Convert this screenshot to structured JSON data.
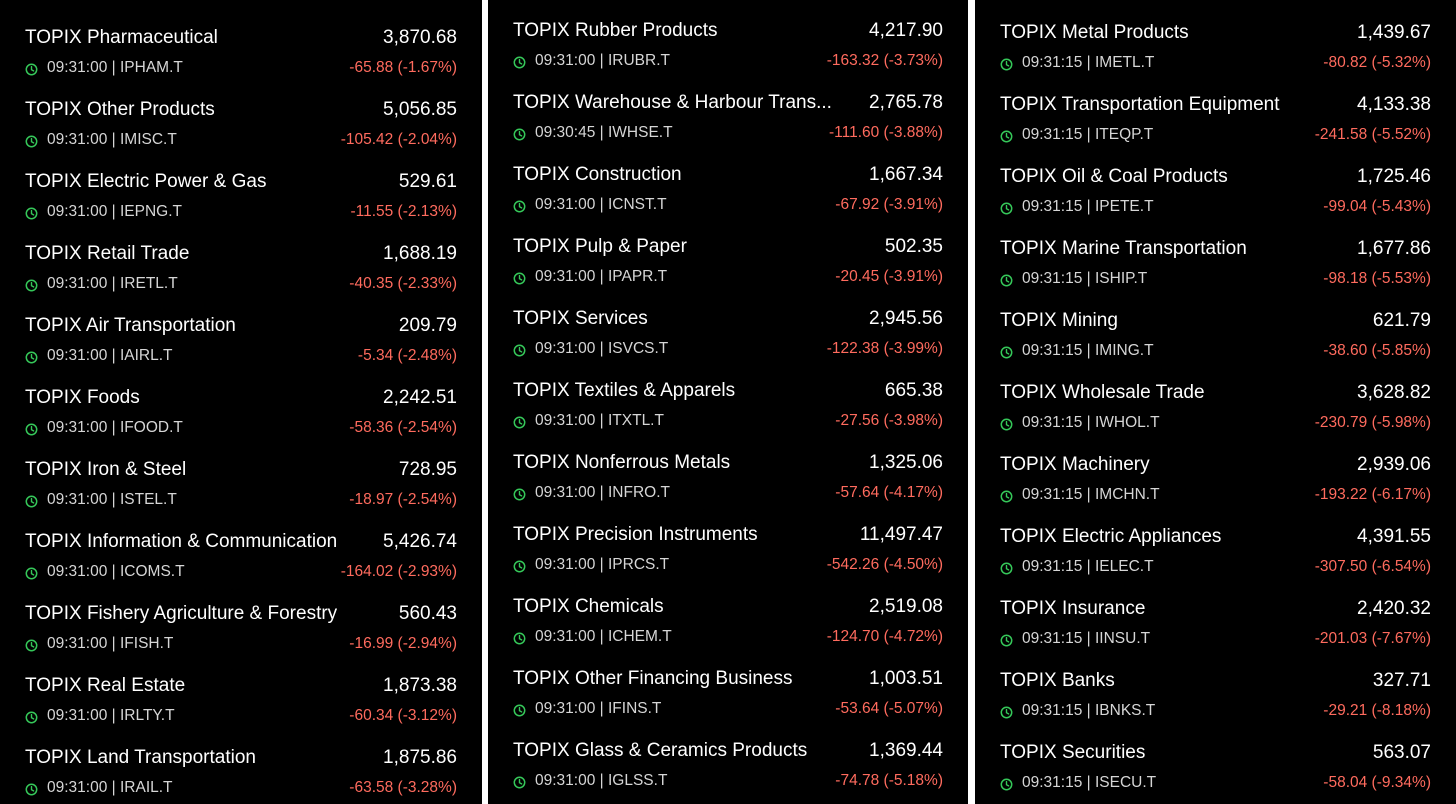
{
  "theme": {
    "background": "#000000",
    "text": "#ffffff",
    "meta_text": "#d6d6d6",
    "negative": "#ff6b5e",
    "clock_green": "#35c759",
    "separator": "#ffffff"
  },
  "columns": [
    {
      "items": [
        {
          "name": "TOPIX Pharmaceutical",
          "price": "3,870.68",
          "time": "09:31:00",
          "code": "IPHAM.T",
          "change": "-65.88 (-1.67%)",
          "icon": "clock-icon"
        },
        {
          "name": "TOPIX Other Products",
          "price": "5,056.85",
          "time": "09:31:00",
          "code": "IMISC.T",
          "change": "-105.42 (-2.04%)",
          "icon": "clock-icon"
        },
        {
          "name": "TOPIX Electric Power & Gas",
          "price": "529.61",
          "time": "09:31:00",
          "code": "IEPNG.T",
          "change": "-11.55 (-2.13%)",
          "icon": "clock-icon"
        },
        {
          "name": "TOPIX Retail Trade",
          "price": "1,688.19",
          "time": "09:31:00",
          "code": "IRETL.T",
          "change": "-40.35 (-2.33%)",
          "icon": "clock-icon"
        },
        {
          "name": "TOPIX Air Transportation",
          "price": "209.79",
          "time": "09:31:00",
          "code": "IAIRL.T",
          "change": "-5.34 (-2.48%)",
          "icon": "clock-icon"
        },
        {
          "name": "TOPIX Foods",
          "price": "2,242.51",
          "time": "09:31:00",
          "code": "IFOOD.T",
          "change": "-58.36 (-2.54%)",
          "icon": "clock-icon"
        },
        {
          "name": "TOPIX Iron & Steel",
          "price": "728.95",
          "time": "09:31:00",
          "code": "ISTEL.T",
          "change": "-18.97 (-2.54%)",
          "icon": "clock-icon"
        },
        {
          "name": "TOPIX Information & Communication",
          "price": "5,426.74",
          "time": "09:31:00",
          "code": "ICOMS.T",
          "change": "-164.02 (-2.93%)",
          "icon": "clock-icon"
        },
        {
          "name": "TOPIX Fishery Agriculture & Forestry",
          "price": "560.43",
          "time": "09:31:00",
          "code": "IFISH.T",
          "change": "-16.99 (-2.94%)",
          "icon": "clock-icon"
        },
        {
          "name": "TOPIX Real Estate",
          "price": "1,873.38",
          "time": "09:31:00",
          "code": "IRLTY.T",
          "change": "-60.34 (-3.12%)",
          "icon": "clock-icon"
        },
        {
          "name": "TOPIX Land Transportation",
          "price": "1,875.86",
          "time": "09:31:00",
          "code": "IRAIL.T",
          "change": "-63.58 (-3.28%)",
          "icon": "clock-icon"
        }
      ]
    },
    {
      "items": [
        {
          "name": "TOPIX Rubber Products",
          "price": "4,217.90",
          "time": "09:31:00",
          "code": "IRUBR.T",
          "change": "-163.32 (-3.73%)",
          "icon": "clock-icon"
        },
        {
          "name": "TOPIX Warehouse & Harbour Trans...",
          "price": "2,765.78",
          "time": "09:30:45",
          "code": "IWHSE.T",
          "change": "-111.60 (-3.88%)",
          "icon": "clock-icon"
        },
        {
          "name": "TOPIX Construction",
          "price": "1,667.34",
          "time": "09:31:00",
          "code": "ICNST.T",
          "change": "-67.92 (-3.91%)",
          "icon": "clock-icon"
        },
        {
          "name": "TOPIX Pulp & Paper",
          "price": "502.35",
          "time": "09:31:00",
          "code": "IPAPR.T",
          "change": "-20.45 (-3.91%)",
          "icon": "clock-icon"
        },
        {
          "name": "TOPIX Services",
          "price": "2,945.56",
          "time": "09:31:00",
          "code": "ISVCS.T",
          "change": "-122.38 (-3.99%)",
          "icon": "clock-icon"
        },
        {
          "name": "TOPIX Textiles & Apparels",
          "price": "665.38",
          "time": "09:31:00",
          "code": "ITXTL.T",
          "change": "-27.56 (-3.98%)",
          "icon": "clock-icon"
        },
        {
          "name": "TOPIX Nonferrous Metals",
          "price": "1,325.06",
          "time": "09:31:00",
          "code": "INFRO.T",
          "change": "-57.64 (-4.17%)",
          "icon": "clock-icon"
        },
        {
          "name": "TOPIX Precision Instruments",
          "price": "11,497.47",
          "time": "09:31:00",
          "code": "IPRCS.T",
          "change": "-542.26 (-4.50%)",
          "icon": "clock-icon"
        },
        {
          "name": "TOPIX Chemicals",
          "price": "2,519.08",
          "time": "09:31:00",
          "code": "ICHEM.T",
          "change": "-124.70 (-4.72%)",
          "icon": "clock-icon"
        },
        {
          "name": "TOPIX Other Financing Business",
          "price": "1,003.51",
          "time": "09:31:00",
          "code": "IFINS.T",
          "change": "-53.64 (-5.07%)",
          "icon": "clock-icon"
        },
        {
          "name": "TOPIX Glass & Ceramics Products",
          "price": "1,369.44",
          "time": "09:31:00",
          "code": "IGLSS.T",
          "change": "-74.78 (-5.18%)",
          "icon": "clock-icon"
        }
      ]
    },
    {
      "items": [
        {
          "name": "TOPIX Metal Products",
          "price": "1,439.67",
          "time": "09:31:15",
          "code": "IMETL.T",
          "change": "-80.82 (-5.32%)",
          "icon": "clock-icon"
        },
        {
          "name": "TOPIX Transportation Equipment",
          "price": "4,133.38",
          "time": "09:31:15",
          "code": "ITEQP.T",
          "change": "-241.58 (-5.52%)",
          "icon": "clock-icon"
        },
        {
          "name": "TOPIX Oil & Coal Products",
          "price": "1,725.46",
          "time": "09:31:15",
          "code": "IPETE.T",
          "change": "-99.04 (-5.43%)",
          "icon": "clock-icon"
        },
        {
          "name": "TOPIX Marine Transportation",
          "price": "1,677.86",
          "time": "09:31:15",
          "code": "ISHIP.T",
          "change": "-98.18 (-5.53%)",
          "icon": "clock-icon"
        },
        {
          "name": "TOPIX Mining",
          "price": "621.79",
          "time": "09:31:15",
          "code": "IMING.T",
          "change": "-38.60 (-5.85%)",
          "icon": "clock-icon"
        },
        {
          "name": "TOPIX Wholesale Trade",
          "price": "3,628.82",
          "time": "09:31:15",
          "code": "IWHOL.T",
          "change": "-230.79 (-5.98%)",
          "icon": "clock-icon"
        },
        {
          "name": "TOPIX Machinery",
          "price": "2,939.06",
          "time": "09:31:15",
          "code": "IMCHN.T",
          "change": "-193.22 (-6.17%)",
          "icon": "clock-icon"
        },
        {
          "name": "TOPIX Electric Appliances",
          "price": "4,391.55",
          "time": "09:31:15",
          "code": "IELEC.T",
          "change": "-307.50 (-6.54%)",
          "icon": "clock-icon"
        },
        {
          "name": "TOPIX Insurance",
          "price": "2,420.32",
          "time": "09:31:15",
          "code": "IINSU.T",
          "change": "-201.03 (-7.67%)",
          "icon": "clock-icon"
        },
        {
          "name": "TOPIX Banks",
          "price": "327.71",
          "time": "09:31:15",
          "code": "IBNKS.T",
          "change": "-29.21 (-8.18%)",
          "icon": "clock-icon"
        },
        {
          "name": "TOPIX Securities",
          "price": "563.07",
          "time": "09:31:15",
          "code": "ISECU.T",
          "change": "-58.04 (-9.34%)",
          "icon": "clock-icon"
        }
      ]
    }
  ]
}
